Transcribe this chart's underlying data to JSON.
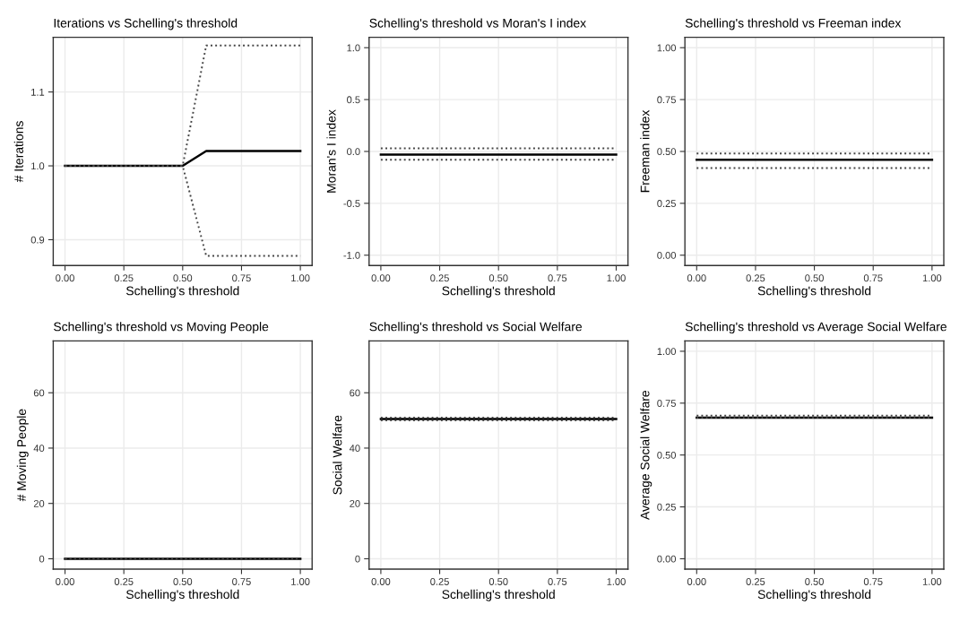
{
  "chart_data": [
    {
      "type": "line",
      "title": "Iterations vs Schelling's threshold",
      "xlabel": "Schelling's threshold",
      "ylabel": "# Iterations",
      "xlim": [
        -0.05,
        1.05
      ],
      "xticks": [
        {
          "value": 0,
          "label": "0.00"
        },
        {
          "value": 0.25,
          "label": "0.25"
        },
        {
          "value": 0.5,
          "label": "0.50"
        },
        {
          "value": 0.75,
          "label": "0.75"
        },
        {
          "value": 1,
          "label": "1.00"
        }
      ],
      "ylim": [
        0.865,
        1.174
      ],
      "yticks": [
        {
          "value": 0.9,
          "label": "0.9"
        },
        {
          "value": 1,
          "label": "1.0"
        },
        {
          "value": 1.1,
          "label": "1.1"
        }
      ],
      "grid": true,
      "series": [
        {
          "color": "#000000",
          "line_style": "solid",
          "x": [
            0,
            0.5,
            0.6,
            1
          ],
          "values": [
            1.0,
            1.0,
            1.02,
            1.02
          ]
        },
        {
          "color": "#444444",
          "line_style": "dotted",
          "x": [
            0,
            0.5,
            0.6,
            1
          ],
          "values": [
            1.0,
            1.0,
            1.163,
            1.163
          ]
        },
        {
          "color": "#444444",
          "line_style": "dotted",
          "x": [
            0,
            0.5,
            0.6,
            1
          ],
          "values": [
            1.0,
            1.0,
            0.878,
            0.878
          ]
        }
      ]
    },
    {
      "type": "line",
      "title": "Schelling's threshold vs Moran's I index",
      "xlabel": "Schelling's threshold",
      "ylabel": "Moran's I index",
      "xlim": [
        -0.05,
        1.05
      ],
      "xticks": [
        {
          "value": 0,
          "label": "0.00"
        },
        {
          "value": 0.25,
          "label": "0.25"
        },
        {
          "value": 0.5,
          "label": "0.50"
        },
        {
          "value": 0.75,
          "label": "0.75"
        },
        {
          "value": 1,
          "label": "1.00"
        }
      ],
      "ylim": [
        -1.1,
        1.1
      ],
      "yticks": [
        {
          "value": -1,
          "label": "-1.0"
        },
        {
          "value": -0.5,
          "label": "-0.5"
        },
        {
          "value": 0,
          "label": "0.0"
        },
        {
          "value": 0.5,
          "label": "0.5"
        },
        {
          "value": 1,
          "label": "1.0"
        }
      ],
      "grid": true,
      "series": [
        {
          "color": "#000000",
          "line_style": "solid",
          "x": [
            0,
            1
          ],
          "values": [
            -0.03,
            -0.03
          ]
        },
        {
          "color": "#444444",
          "line_style": "dotted",
          "x": [
            0,
            1
          ],
          "values": [
            0.03,
            0.03
          ]
        },
        {
          "color": "#444444",
          "line_style": "dotted",
          "x": [
            0,
            1
          ],
          "values": [
            -0.08,
            -0.08
          ]
        }
      ]
    },
    {
      "type": "line",
      "title": "Schelling's threshold vs Freeman index",
      "xlabel": "Schelling's threshold",
      "ylabel": "Freeman index",
      "xlim": [
        -0.05,
        1.05
      ],
      "xticks": [
        {
          "value": 0,
          "label": "0.00"
        },
        {
          "value": 0.25,
          "label": "0.25"
        },
        {
          "value": 0.5,
          "label": "0.50"
        },
        {
          "value": 0.75,
          "label": "0.75"
        },
        {
          "value": 1,
          "label": "1.00"
        }
      ],
      "ylim": [
        -0.05,
        1.05
      ],
      "yticks": [
        {
          "value": 0,
          "label": "0.00"
        },
        {
          "value": 0.25,
          "label": "0.25"
        },
        {
          "value": 0.5,
          "label": "0.50"
        },
        {
          "value": 0.75,
          "label": "0.75"
        },
        {
          "value": 1,
          "label": "1.00"
        }
      ],
      "grid": true,
      "series": [
        {
          "color": "#000000",
          "line_style": "solid",
          "x": [
            0,
            1
          ],
          "values": [
            0.46,
            0.46
          ]
        },
        {
          "color": "#444444",
          "line_style": "dotted",
          "x": [
            0,
            1
          ],
          "values": [
            0.49,
            0.49
          ]
        },
        {
          "color": "#444444",
          "line_style": "dotted",
          "x": [
            0,
            1
          ],
          "values": [
            0.42,
            0.42
          ]
        }
      ]
    },
    {
      "type": "line",
      "title": "Schelling's threshold vs Moving People",
      "xlabel": "Schelling's threshold",
      "ylabel": "# Moving People",
      "xlim": [
        -0.05,
        1.05
      ],
      "xticks": [
        {
          "value": 0,
          "label": "0.00"
        },
        {
          "value": 0.25,
          "label": "0.25"
        },
        {
          "value": 0.5,
          "label": "0.50"
        },
        {
          "value": 0.75,
          "label": "0.75"
        },
        {
          "value": 1,
          "label": "1.00"
        }
      ],
      "ylim": [
        -3.75,
        78.75
      ],
      "yticks": [
        {
          "value": 0,
          "label": "0"
        },
        {
          "value": 20,
          "label": "20"
        },
        {
          "value": 40,
          "label": "40"
        },
        {
          "value": 60,
          "label": "60"
        }
      ],
      "grid": true,
      "series": [
        {
          "color": "#000000",
          "line_style": "solid",
          "x": [
            0,
            1
          ],
          "values": [
            0,
            0
          ]
        },
        {
          "color": "#444444",
          "line_style": "dotted",
          "x": [
            0,
            1
          ],
          "values": [
            0,
            0
          ]
        },
        {
          "color": "#444444",
          "line_style": "dotted",
          "x": [
            0,
            1
          ],
          "values": [
            0,
            0
          ]
        }
      ]
    },
    {
      "type": "line",
      "title": "Schelling's threshold vs Social Welfare",
      "xlabel": "Schelling's threshold",
      "ylabel": "Social Welfare",
      "xlim": [
        -0.05,
        1.05
      ],
      "xticks": [
        {
          "value": 0,
          "label": "0.00"
        },
        {
          "value": 0.25,
          "label": "0.25"
        },
        {
          "value": 0.5,
          "label": "0.50"
        },
        {
          "value": 0.75,
          "label": "0.75"
        },
        {
          "value": 1,
          "label": "1.00"
        }
      ],
      "ylim": [
        -3.75,
        78.75
      ],
      "yticks": [
        {
          "value": 0,
          "label": "0"
        },
        {
          "value": 20,
          "label": "20"
        },
        {
          "value": 40,
          "label": "40"
        },
        {
          "value": 60,
          "label": "60"
        }
      ],
      "grid": true,
      "series": [
        {
          "color": "#000000",
          "line_style": "solid",
          "x": [
            0,
            1
          ],
          "values": [
            50.5,
            50.5
          ]
        },
        {
          "color": "#444444",
          "line_style": "dotted",
          "x": [
            0,
            1
          ],
          "values": [
            51,
            51
          ]
        },
        {
          "color": "#444444",
          "line_style": "dotted",
          "x": [
            0,
            1
          ],
          "values": [
            50,
            50
          ]
        }
      ]
    },
    {
      "type": "line",
      "title": "Schelling's threshold vs Average Social Welfare",
      "xlabel": "Schelling's threshold",
      "ylabel": "Average Social Welfare",
      "xlim": [
        -0.05,
        1.05
      ],
      "xticks": [
        {
          "value": 0,
          "label": "0.00"
        },
        {
          "value": 0.25,
          "label": "0.25"
        },
        {
          "value": 0.5,
          "label": "0.50"
        },
        {
          "value": 0.75,
          "label": "0.75"
        },
        {
          "value": 1,
          "label": "1.00"
        }
      ],
      "ylim": [
        -0.05,
        1.05
      ],
      "yticks": [
        {
          "value": 0,
          "label": "0.00"
        },
        {
          "value": 0.25,
          "label": "0.25"
        },
        {
          "value": 0.5,
          "label": "0.50"
        },
        {
          "value": 0.75,
          "label": "0.75"
        },
        {
          "value": 1,
          "label": "1.00"
        }
      ],
      "grid": true,
      "series": [
        {
          "color": "#000000",
          "line_style": "solid",
          "x": [
            0,
            1
          ],
          "values": [
            0.68,
            0.68
          ]
        },
        {
          "color": "#444444",
          "line_style": "dotted",
          "x": [
            0,
            1
          ],
          "values": [
            0.69,
            0.69
          ]
        },
        {
          "color": "#444444",
          "line_style": "dotted",
          "x": [
            0,
            1
          ],
          "values": [
            0.68,
            0.68
          ]
        }
      ]
    }
  ]
}
